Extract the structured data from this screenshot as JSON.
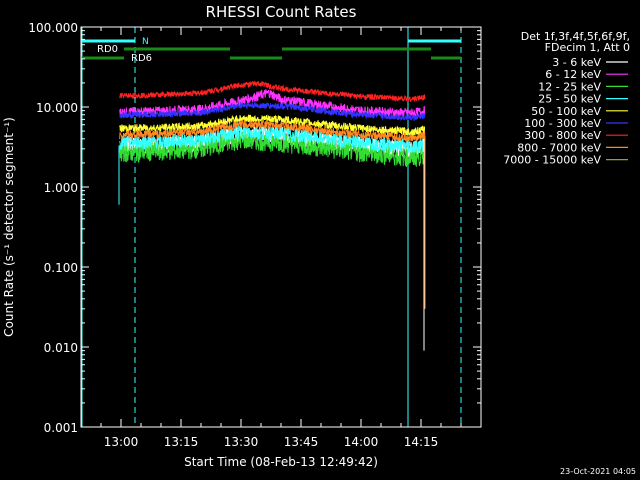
{
  "chart_data": {
    "type": "line",
    "title": "RHESSI Count Rates",
    "xlabel": "Start Time (08-Feb-13 12:49:42)",
    "ylabel": "Count Rate (s⁻¹ detector segment⁻¹)",
    "y_scale": "log",
    "xlim": [
      "12:50",
      "14:30"
    ],
    "ylim": [
      0.001,
      100
    ],
    "x_ticks": [
      "13:00",
      "13:15",
      "13:30",
      "13:45",
      "14:00",
      "14:15"
    ],
    "y_ticks": [
      "0.001",
      "0.010",
      "0.100",
      "1.000",
      "10.000",
      "100.000"
    ],
    "legend_header": [
      "Det 1f,3f,4f,5f,6f,9f,",
      "FDecim 1, Att 0"
    ],
    "legend_placement": "right, outside plot",
    "series": [
      {
        "name": "3 - 6 keV",
        "color": "#ffffff",
        "points": [
          [
            "12:59:40",
            3.2
          ],
          [
            "13:00",
            3.3
          ],
          [
            "13:10",
            3.4
          ],
          [
            "13:20",
            3.6
          ],
          [
            "13:30",
            4.6
          ],
          [
            "13:40",
            4.4
          ],
          [
            "13:50",
            3.8
          ],
          [
            "14:00",
            3.3
          ],
          [
            "14:10",
            3.0
          ],
          [
            "14:13",
            2.9
          ],
          [
            "14:15",
            3.1
          ],
          [
            "14:16",
            3.3
          ]
        ]
      },
      {
        "name": "6 - 12 keV",
        "color": "#ff33ff",
        "points": [
          [
            "12:59:40",
            8.5
          ],
          [
            "13:00",
            8.6
          ],
          [
            "13:10",
            8.9
          ],
          [
            "13:20",
            9.4
          ],
          [
            "13:30",
            12
          ],
          [
            "13:37",
            15
          ],
          [
            "13:40",
            12.5
          ],
          [
            "13:50",
            10.5
          ],
          [
            "14:00",
            9.0
          ],
          [
            "14:10",
            8.5
          ],
          [
            "14:13",
            8.4
          ],
          [
            "14:16",
            9.0
          ]
        ]
      },
      {
        "name": "12 - 25 keV",
        "color": "#33dd33",
        "points": [
          [
            "12:59:40",
            2.6
          ],
          [
            "13:00",
            2.7
          ],
          [
            "13:10",
            2.8
          ],
          [
            "13:20",
            3.0
          ],
          [
            "13:30",
            3.9
          ],
          [
            "13:40",
            3.6
          ],
          [
            "13:50",
            3.1
          ],
          [
            "14:00",
            2.7
          ],
          [
            "14:10",
            2.4
          ],
          [
            "14:13",
            2.3
          ],
          [
            "14:16",
            2.5
          ]
        ]
      },
      {
        "name": "25 - 50 keV",
        "color": "#33ffff",
        "points": [
          [
            "12:59:40",
            3.5
          ],
          [
            "13:00",
            3.6
          ],
          [
            "13:10",
            3.7
          ],
          [
            "13:20",
            3.9
          ],
          [
            "13:30",
            4.9
          ],
          [
            "13:40",
            4.7
          ],
          [
            "13:50",
            4.1
          ],
          [
            "14:00",
            3.6
          ],
          [
            "14:10",
            3.3
          ],
          [
            "14:13",
            3.2
          ],
          [
            "14:16",
            3.4
          ]
        ]
      },
      {
        "name": "50 - 100 keV",
        "color": "#ffff33",
        "points": [
          [
            "12:59:40",
            5.3
          ],
          [
            "13:00",
            5.4
          ],
          [
            "13:10",
            5.5
          ],
          [
            "13:20",
            5.8
          ],
          [
            "13:30",
            7.2
          ],
          [
            "13:40",
            7.0
          ],
          [
            "13:50",
            6.1
          ],
          [
            "14:00",
            5.4
          ],
          [
            "14:10",
            5.0
          ],
          [
            "14:13",
            4.9
          ],
          [
            "14:16",
            5.2
          ]
        ]
      },
      {
        "name": "100 - 300 keV",
        "color": "#3333ff",
        "points": [
          [
            "12:59:40",
            7.8
          ],
          [
            "13:00",
            7.9
          ],
          [
            "13:10",
            8.1
          ],
          [
            "13:20",
            8.5
          ],
          [
            "13:30",
            10.5
          ],
          [
            "13:40",
            10.3
          ],
          [
            "13:50",
            9.0
          ],
          [
            "14:00",
            8.0
          ],
          [
            "14:10",
            7.5
          ],
          [
            "14:13",
            7.3
          ],
          [
            "14:16",
            7.7
          ]
        ]
      },
      {
        "name": "300 - 800 keV",
        "color": "#ff2222",
        "points": [
          [
            "12:59:40",
            13.5
          ],
          [
            "13:00",
            13.8
          ],
          [
            "13:10",
            14.2
          ],
          [
            "13:20",
            15
          ],
          [
            "13:30",
            19
          ],
          [
            "13:35",
            19.5
          ],
          [
            "13:40",
            17
          ],
          [
            "13:50",
            15
          ],
          [
            "14:00",
            13.5
          ],
          [
            "14:10",
            12.8
          ],
          [
            "14:13",
            12.6
          ],
          [
            "14:16",
            13.3
          ]
        ]
      },
      {
        "name": "800 - 7000 keV",
        "color": "#ff8822",
        "points": [
          [
            "12:59:40",
            4.4
          ],
          [
            "13:00",
            4.5
          ],
          [
            "13:10",
            4.6
          ],
          [
            "13:20",
            4.9
          ],
          [
            "13:30",
            6.1
          ],
          [
            "13:40",
            5.9
          ],
          [
            "13:50",
            5.1
          ],
          [
            "14:00",
            4.5
          ],
          [
            "14:10",
            4.2
          ],
          [
            "14:13",
            4.1
          ],
          [
            "14:16",
            4.4
          ]
        ]
      },
      {
        "name": "7000 - 15000 keV",
        "color": "#88aa22",
        "points": []
      }
    ],
    "attenuator_bars": {
      "color": "#1a8a1a",
      "label_rd0": "RD0",
      "label_rd6": "RD6"
    },
    "night_bars": {
      "color": "#33ffff",
      "label": "N"
    }
  },
  "footer": {
    "date": "23-Oct-2021 04:05"
  }
}
